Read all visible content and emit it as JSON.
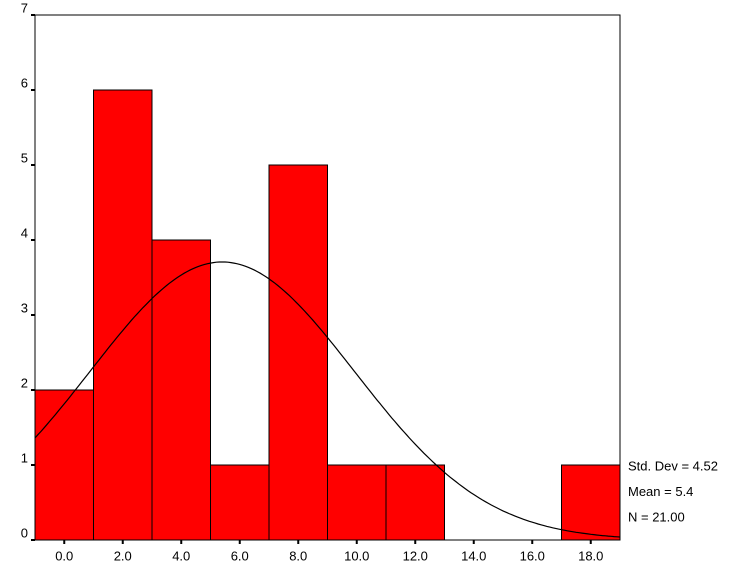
{
  "chart_data": {
    "type": "histogram",
    "bins": [
      -1,
      1,
      3,
      5,
      7,
      9,
      11,
      13,
      15,
      17,
      19
    ],
    "values": [
      2,
      6,
      4,
      1,
      5,
      1,
      1,
      0,
      0,
      1
    ],
    "color": "#ff0000",
    "xlim": [
      -1,
      19
    ],
    "xticks": [
      {
        "value": 0,
        "label": "0.0"
      },
      {
        "value": 2,
        "label": "2.0"
      },
      {
        "value": 4,
        "label": "4.0"
      },
      {
        "value": 6,
        "label": "6.0"
      },
      {
        "value": 8,
        "label": "8.0"
      },
      {
        "value": 10,
        "label": "10.0"
      },
      {
        "value": 12,
        "label": "12.0"
      },
      {
        "value": 14,
        "label": "14.0"
      },
      {
        "value": 16,
        "label": "16.0"
      },
      {
        "value": 18,
        "label": "18.0"
      }
    ],
    "ylim": [
      0,
      7
    ],
    "yticks": [
      0,
      1,
      2,
      3,
      4,
      5,
      6,
      7
    ],
    "normal_curve": {
      "std_dev": 4.52,
      "mean": 5.4,
      "n": 21,
      "labels": [
        "Std. Dev = 4.52",
        "Mean = 5.4",
        "N = 21.00"
      ]
    }
  }
}
